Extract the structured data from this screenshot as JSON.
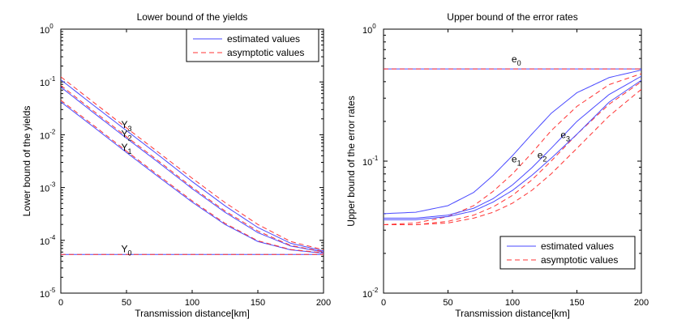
{
  "chart_data": [
    {
      "type": "line",
      "title": "Lower bound of the yields",
      "xlabel": "Transmission distance[km]",
      "ylabel": "Lower bound of the yields",
      "xlim": [
        0,
        200
      ],
      "ylim": [
        1e-05,
        1
      ],
      "yscale": "log",
      "xticks": [
        "0",
        "50",
        "100",
        "150",
        "200"
      ],
      "yticks": [
        {
          "base": "10",
          "exp": "-5"
        },
        {
          "base": "10",
          "exp": "-4"
        },
        {
          "base": "10",
          "exp": "-3"
        },
        {
          "base": "10",
          "exp": "-2"
        },
        {
          "base": "10",
          "exp": "-1"
        },
        {
          "base": "10",
          "exp": "0"
        }
      ],
      "legend": {
        "position": "top-right",
        "entries": [
          {
            "label": "estimated values",
            "style": "solid",
            "color": "#4a4aff"
          },
          {
            "label": "asymptotic values",
            "style": "dashed",
            "color": "#ff3333"
          }
        ]
      },
      "annotations": [
        {
          "base": "Y",
          "sub": "0",
          "x": 50,
          "y": 5.9e-05
        },
        {
          "base": "Y",
          "sub": "1",
          "x": 50,
          "y": 0.005
        },
        {
          "base": "Y",
          "sub": "2",
          "x": 50,
          "y": 0.009
        },
        {
          "base": "Y",
          "sub": "3",
          "x": 50,
          "y": 0.0135
        }
      ],
      "series": [
        {
          "name": "Y0 estimated",
          "style": "solid",
          "x": [
            0,
            200
          ],
          "y": [
            5.4e-05,
            5.4e-05
          ]
        },
        {
          "name": "Y0 asymptotic",
          "style": "dashed",
          "x": [
            0,
            200
          ],
          "y": [
            5.4e-05,
            5.4e-05
          ]
        },
        {
          "name": "Y1 estimated",
          "style": "solid",
          "x": [
            0,
            25,
            50,
            75,
            100,
            125,
            150,
            175,
            200
          ],
          "y": [
            0.042,
            0.014,
            0.0046,
            0.00155,
            0.00053,
            0.0002,
            9.5e-05,
            6.6e-05,
            5.7e-05
          ]
        },
        {
          "name": "Y1 asymptotic",
          "style": "dashed",
          "x": [
            0,
            25,
            50,
            75,
            100,
            125,
            150,
            175,
            200
          ],
          "y": [
            0.045,
            0.015,
            0.0049,
            0.00165,
            0.00056,
            0.00021,
            9.8e-05,
            6.7e-05,
            5.8e-05
          ]
        },
        {
          "name": "Y2 estimated",
          "style": "solid",
          "x": [
            0,
            25,
            50,
            75,
            100,
            125,
            150,
            175,
            200
          ],
          "y": [
            0.08,
            0.026,
            0.0086,
            0.0029,
            0.00095,
            0.00034,
            0.00014,
            7.8e-05,
            6e-05
          ]
        },
        {
          "name": "Y2 asymptotic",
          "style": "dashed",
          "x": [
            0,
            25,
            50,
            75,
            100,
            125,
            150,
            175,
            200
          ],
          "y": [
            0.086,
            0.028,
            0.0092,
            0.0031,
            0.00101,
            0.00036,
            0.00015,
            8e-05,
            6.1e-05
          ]
        },
        {
          "name": "Y3 estimated",
          "style": "solid",
          "x": [
            0,
            25,
            50,
            75,
            100,
            125,
            150,
            175,
            200
          ],
          "y": [
            0.11,
            0.036,
            0.012,
            0.004,
            0.0013,
            0.00045,
            0.000175,
            8.8e-05,
            6.3e-05
          ]
        },
        {
          "name": "Y3 asymptotic",
          "style": "dashed",
          "x": [
            0,
            25,
            50,
            75,
            100,
            125,
            150,
            175,
            200
          ],
          "y": [
            0.125,
            0.041,
            0.0135,
            0.0045,
            0.0015,
            0.00052,
            0.0002,
            9.5e-05,
            6.6e-05
          ]
        }
      ]
    },
    {
      "type": "line",
      "title": "Upper bound of the error rates",
      "xlabel": "Transmission distance[km]",
      "ylabel": "Upper bound of the error rates",
      "xlim": [
        0,
        200
      ],
      "ylim": [
        0.01,
        1
      ],
      "yscale": "log",
      "xticks": [
        "0",
        "50",
        "100",
        "150",
        "200"
      ],
      "yticks": [
        {
          "base": "10",
          "exp": "-2"
        },
        {
          "base": "10",
          "exp": "-1"
        },
        {
          "base": "10",
          "exp": "0"
        }
      ],
      "legend": {
        "position": "bottom-right",
        "entries": [
          {
            "label": "estimated values",
            "style": "solid",
            "color": "#4a4aff"
          },
          {
            "label": "asymptotic values",
            "style": "dashed",
            "color": "#ff3333"
          }
        ]
      },
      "annotations": [
        {
          "base": "e",
          "sub": "0",
          "x": 103,
          "y": 0.56
        },
        {
          "base": "e",
          "sub": "1",
          "x": 103,
          "y": 0.098
        },
        {
          "base": "e",
          "sub": "2",
          "x": 123,
          "y": 0.105
        },
        {
          "base": "e",
          "sub": "3",
          "x": 141,
          "y": 0.15
        }
      ],
      "series": [
        {
          "name": "e0 estimated",
          "style": "solid",
          "x": [
            0,
            200
          ],
          "y": [
            0.5,
            0.5
          ]
        },
        {
          "name": "e0 asymptotic",
          "style": "dashed",
          "x": [
            0,
            200
          ],
          "y": [
            0.5,
            0.5
          ]
        },
        {
          "name": "e1 estimated",
          "style": "solid",
          "x": [
            0,
            25,
            50,
            70,
            85,
            100,
            115,
            130,
            150,
            175,
            200
          ],
          "y": [
            0.04,
            0.041,
            0.046,
            0.058,
            0.078,
            0.11,
            0.16,
            0.23,
            0.33,
            0.43,
            0.49
          ]
        },
        {
          "name": "e1 asymptotic",
          "style": "dashed",
          "x": [
            0,
            25,
            50,
            70,
            85,
            100,
            115,
            130,
            150,
            175,
            200
          ],
          "y": [
            0.033,
            0.034,
            0.038,
            0.046,
            0.059,
            0.08,
            0.115,
            0.17,
            0.26,
            0.38,
            0.46
          ]
        },
        {
          "name": "e2 estimated",
          "style": "solid",
          "x": [
            0,
            25,
            50,
            70,
            85,
            100,
            115,
            130,
            150,
            175,
            200
          ],
          "y": [
            0.037,
            0.037,
            0.039,
            0.044,
            0.052,
            0.066,
            0.089,
            0.125,
            0.2,
            0.32,
            0.44
          ]
        },
        {
          "name": "e2 asymptotic",
          "style": "dashed",
          "x": [
            0,
            25,
            50,
            70,
            85,
            100,
            115,
            130,
            150,
            175,
            200
          ],
          "y": [
            0.033,
            0.033,
            0.035,
            0.039,
            0.045,
            0.055,
            0.072,
            0.1,
            0.16,
            0.27,
            0.4
          ]
        },
        {
          "name": "e3 estimated",
          "style": "solid",
          "x": [
            0,
            25,
            50,
            70,
            85,
            100,
            115,
            130,
            150,
            175,
            200
          ],
          "y": [
            0.036,
            0.036,
            0.038,
            0.042,
            0.049,
            0.06,
            0.078,
            0.105,
            0.16,
            0.28,
            0.41
          ]
        },
        {
          "name": "e3 asymptotic",
          "style": "dashed",
          "x": [
            0,
            25,
            50,
            70,
            85,
            100,
            115,
            130,
            150,
            175,
            200
          ],
          "y": [
            0.033,
            0.033,
            0.034,
            0.037,
            0.041,
            0.048,
            0.06,
            0.08,
            0.125,
            0.22,
            0.35
          ]
        }
      ]
    }
  ],
  "colors": {
    "estimated": "#4a4aff",
    "asymptotic": "#ff3333",
    "axis": "#000000",
    "background": "#ffffff"
  }
}
